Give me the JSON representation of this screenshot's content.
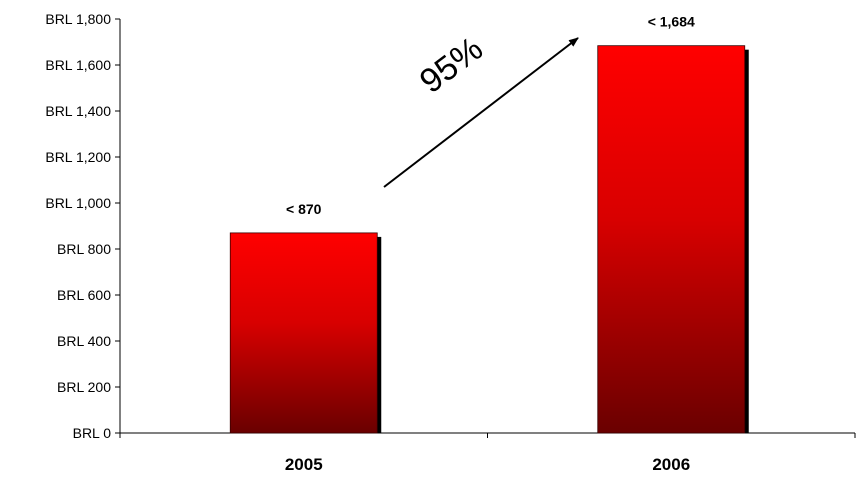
{
  "chart_data": {
    "type": "bar",
    "categories": [
      "2005",
      "2006"
    ],
    "values": [
      870,
      1684
    ],
    "data_labels": [
      "< 870",
      "< 1,684"
    ],
    "ylim": [
      0,
      1800
    ],
    "y_ticks": [
      {
        "value": 0,
        "label": "BRL 0"
      },
      {
        "value": 200,
        "label": "BRL 200"
      },
      {
        "value": 400,
        "label": "BRL 400"
      },
      {
        "value": 600,
        "label": "BRL 600"
      },
      {
        "value": 800,
        "label": "BRL 800"
      },
      {
        "value": 1000,
        "label": "BRL 1,000"
      },
      {
        "value": 1200,
        "label": "BRL 1,200"
      },
      {
        "value": 1400,
        "label": "BRL 1,400"
      },
      {
        "value": 1600,
        "label": "BRL 1,600"
      },
      {
        "value": 1800,
        "label": "BRL 1,800"
      }
    ],
    "title": "",
    "xlabel": "",
    "ylabel": "",
    "grid": false,
    "annotation": {
      "text": "95%",
      "type": "growth-arrow"
    },
    "colors": {
      "bar_top": "#ff0000",
      "bar_bottom": "#6a0000",
      "bar_shadow": "#000000",
      "axis": "#000000"
    }
  }
}
